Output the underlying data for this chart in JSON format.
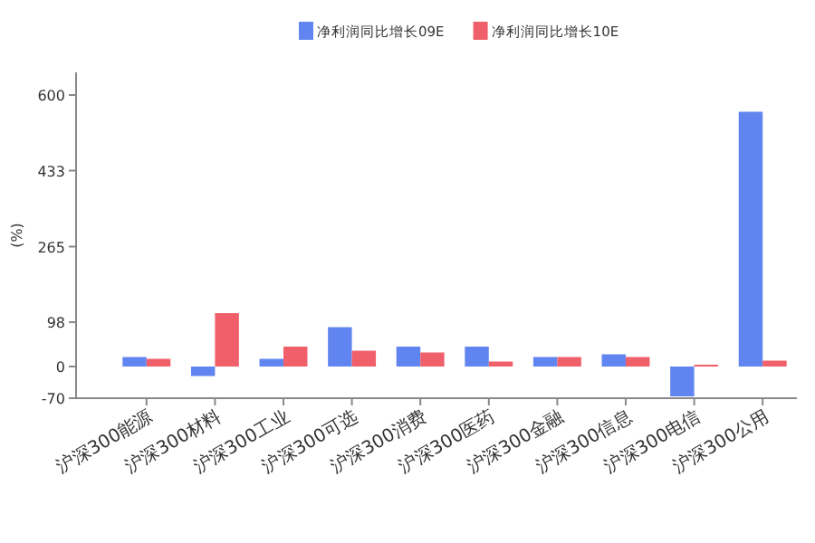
{
  "chart_data": {
    "type": "bar",
    "ylabel": "(%)",
    "categories": [
      "沪深300能源",
      "沪深300材料",
      "沪深300工业",
      "沪深300可选",
      "沪深300消费",
      "沪深300医药",
      "沪深300金融",
      "沪深300信息",
      "沪深300电信",
      "沪深300公用"
    ],
    "series": [
      {
        "name": "净利润同比增长09E",
        "color": "#6185f0",
        "values": [
          21,
          -21,
          17,
          87,
          44,
          44,
          21,
          27,
          -66,
          563
        ]
      },
      {
        "name": "净利润同比增长10E",
        "color": "#f0606a",
        "values": [
          17,
          118,
          44,
          35,
          31,
          11,
          21,
          21,
          4,
          13
        ]
      }
    ],
    "ylim": [
      -70,
      650
    ],
    "yticks": [
      -70,
      0,
      98,
      265,
      433,
      600
    ],
    "legend": "top",
    "grid": false
  }
}
